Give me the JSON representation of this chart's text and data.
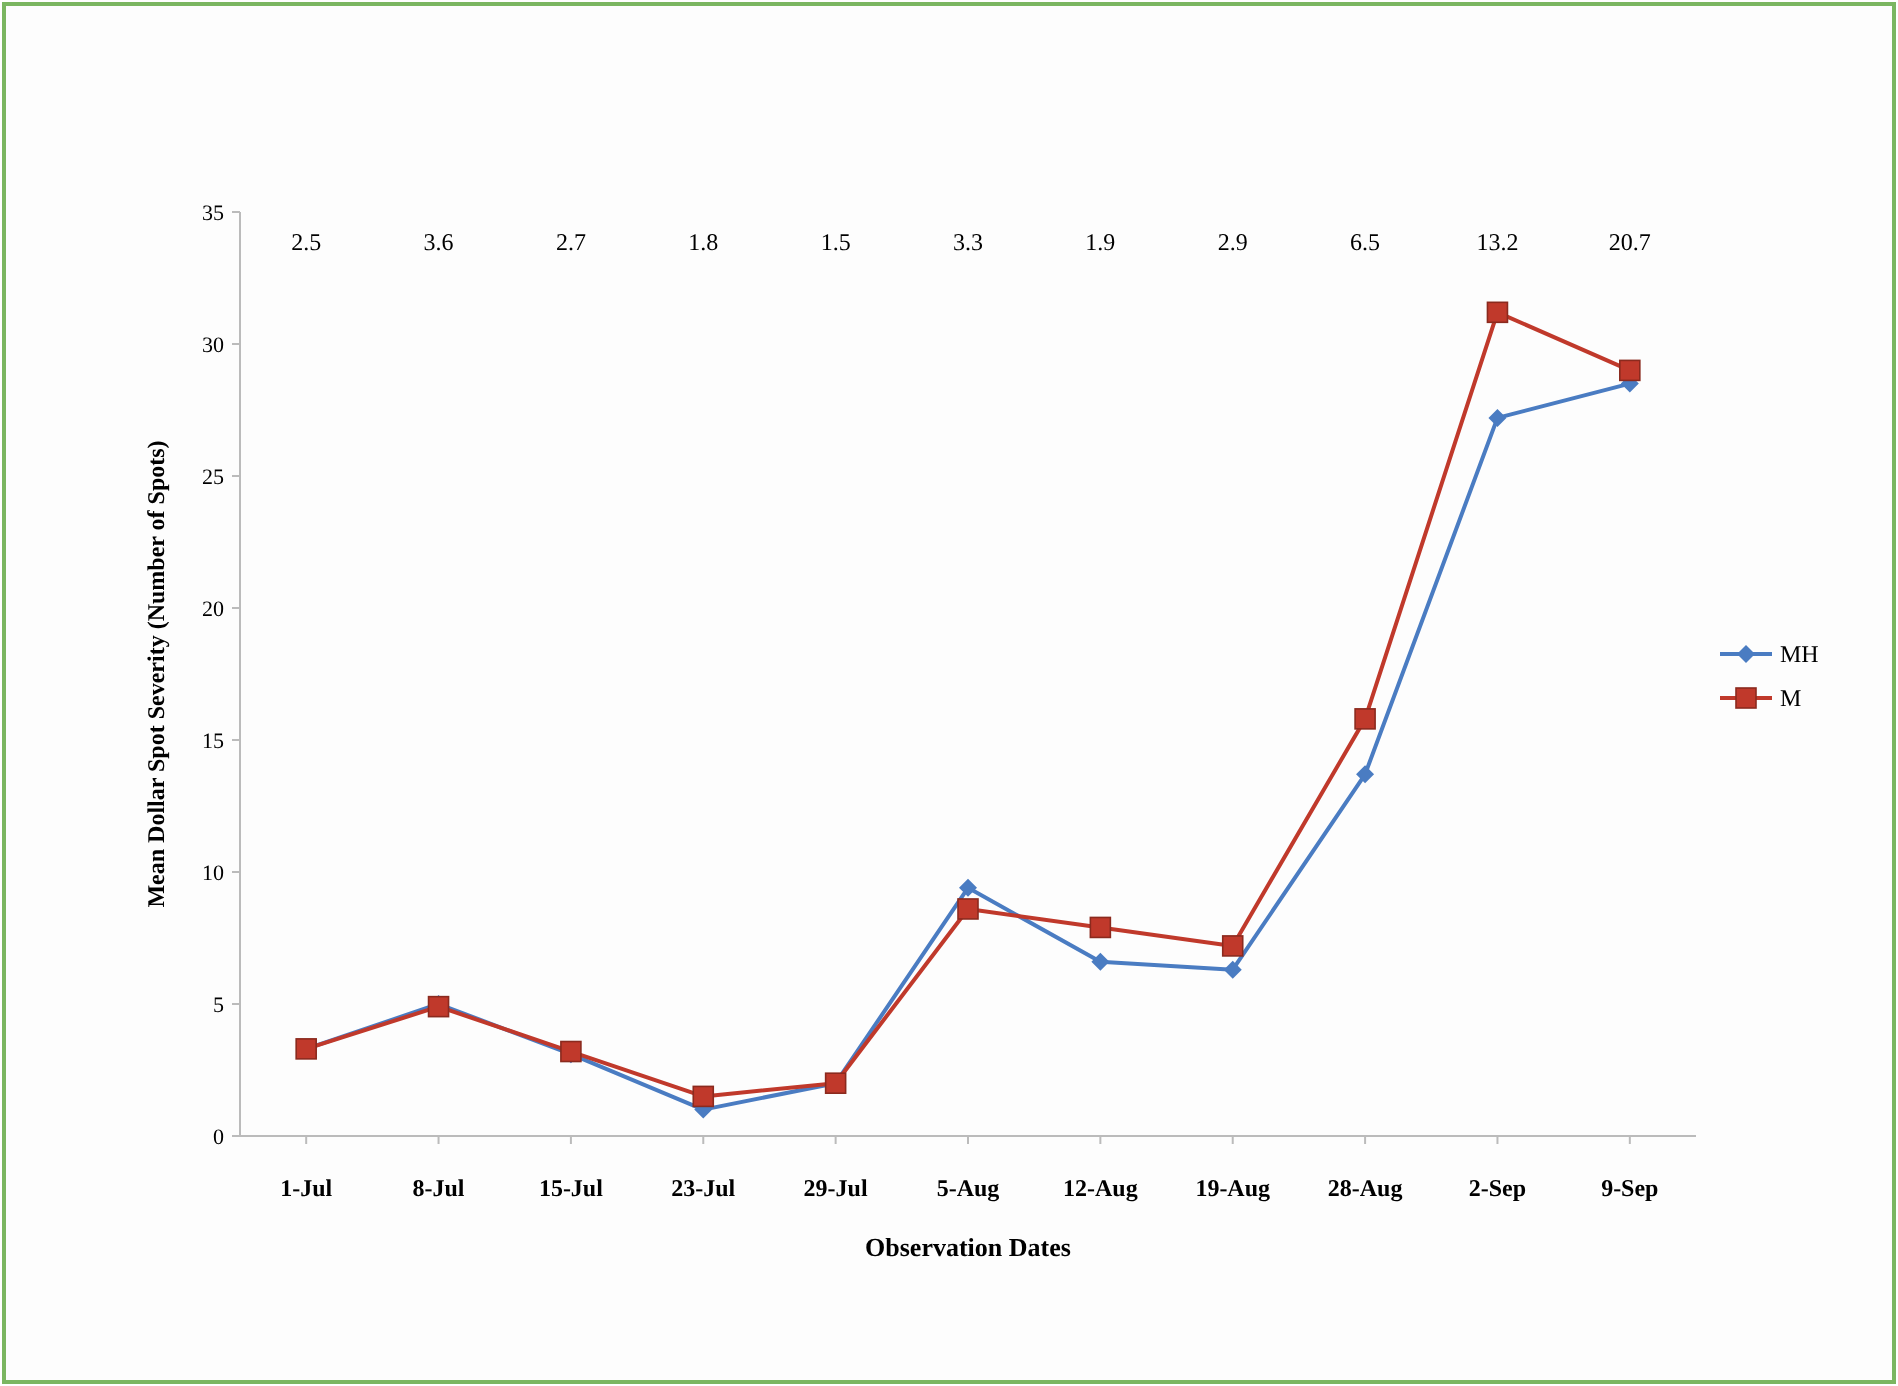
{
  "chart_data": {
    "type": "line",
    "xlabel": "Observation Dates",
    "ylabel": "Mean Dollar Spot Severity (Number of Spots)",
    "categories": [
      "1-Jul",
      "8-Jul",
      "15-Jul",
      "23-Jul",
      "29-Jul",
      "5-Aug",
      "12-Aug",
      "19-Aug",
      "28-Aug",
      "2-Sep",
      "9-Sep"
    ],
    "series": [
      {
        "name": "MH",
        "color": "#4a7cc2",
        "marker": "diamond",
        "values": [
          3.3,
          5.0,
          3.1,
          1.0,
          2.0,
          9.4,
          6.6,
          6.3,
          13.7,
          27.2,
          28.5
        ]
      },
      {
        "name": "M",
        "color": "#c0392b",
        "marker": "square",
        "values": [
          3.3,
          4.9,
          3.2,
          1.5,
          2.0,
          8.6,
          7.9,
          7.2,
          15.8,
          31.2,
          29.0
        ]
      }
    ],
    "ylim": [
      0,
      35
    ],
    "yticks": [
      0,
      5,
      10,
      15,
      20,
      25,
      30,
      35
    ],
    "grid": false,
    "legend": "right",
    "annotations": [
      "2.5",
      "3.6",
      "2.7",
      "1.8",
      "1.5",
      "3.3",
      "1.9",
      "2.9",
      "6.5",
      "13.2",
      "20.7"
    ]
  }
}
